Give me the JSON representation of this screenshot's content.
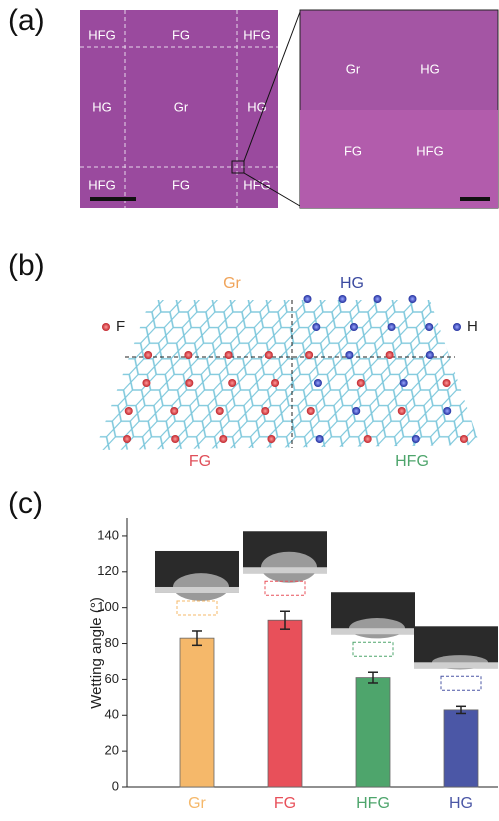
{
  "panels": {
    "a": {
      "label": "(a)",
      "left_regions": [
        "HFG",
        "FG",
        "HFG",
        "HG",
        "Gr",
        "HG",
        "HFG",
        "FG",
        "HFG"
      ],
      "right_regions": [
        "Gr",
        "HG",
        "FG",
        "HFG"
      ]
    },
    "b": {
      "label": "(b)",
      "regions": [
        "Gr",
        "HG",
        "FG",
        "HFG"
      ],
      "legend": [
        "F",
        "H"
      ]
    },
    "c": {
      "label": "(c)"
    }
  },
  "chart_data": {
    "type": "bar",
    "y_label": "Wetting angle (°)",
    "categories": [
      "Gr",
      "FG",
      "HFG",
      "HG"
    ],
    "values": [
      83,
      93,
      61,
      43
    ],
    "errors": [
      4,
      5,
      3,
      2
    ],
    "colors": [
      "#f5b86a",
      "#e8505a",
      "#4ea56c",
      "#4b57a6"
    ],
    "ylim": [
      0,
      150
    ],
    "yticks": [
      0,
      20,
      40,
      60,
      80,
      100,
      120,
      140
    ]
  }
}
